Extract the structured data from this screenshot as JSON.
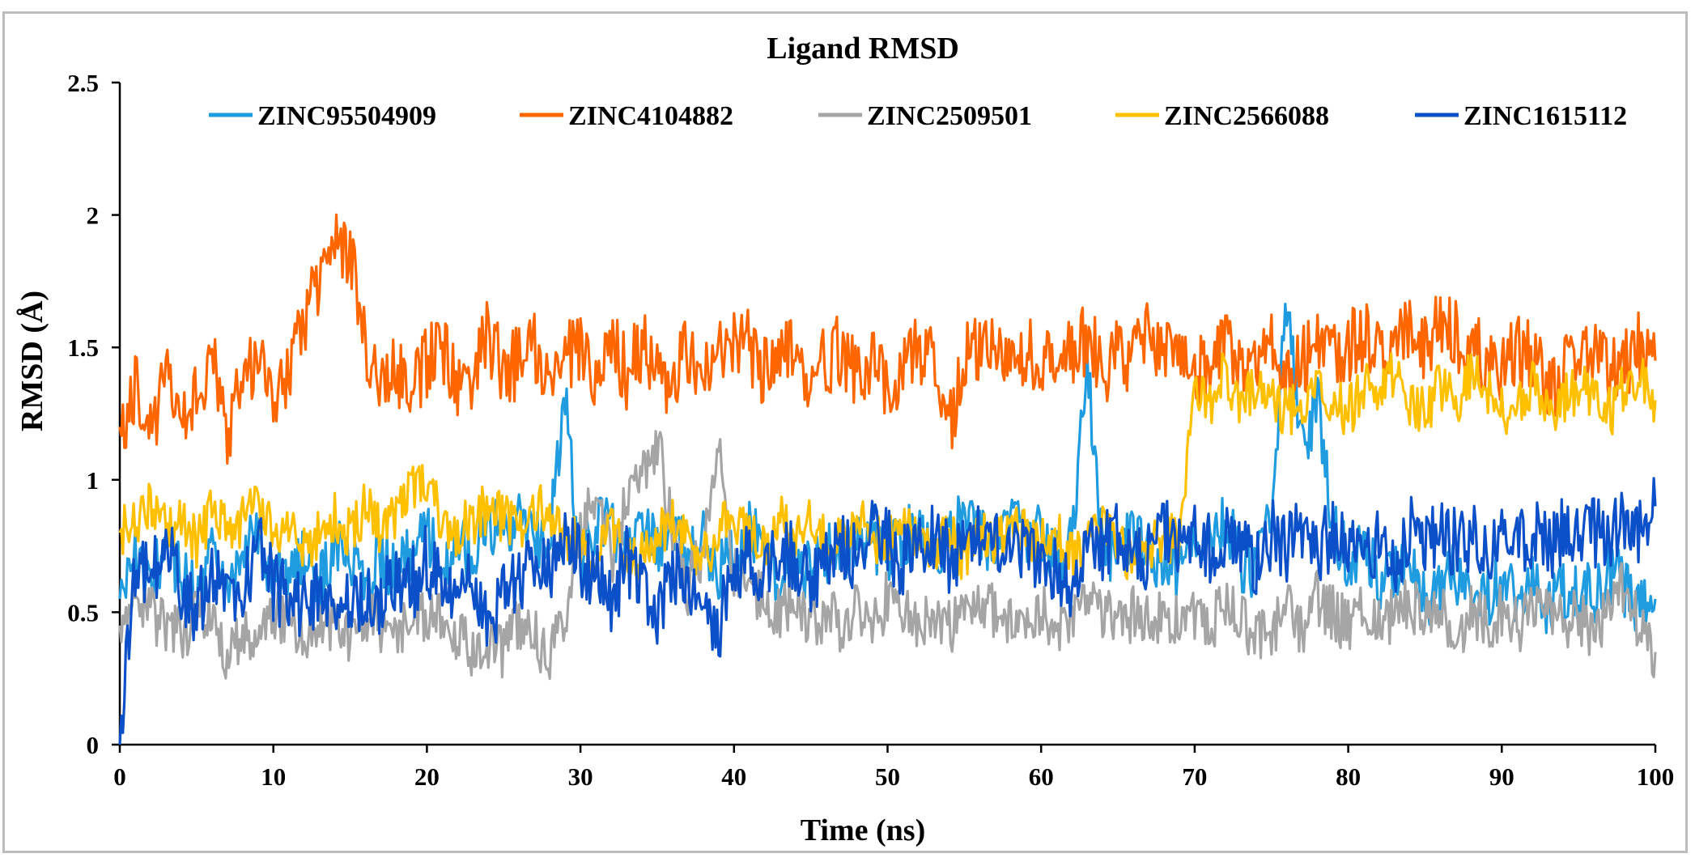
{
  "chart_data": {
    "type": "line",
    "title": "Ligand RMSD",
    "xlabel": "Time (ns)",
    "ylabel": "RMSD (Å)",
    "xlim": [
      0,
      100
    ],
    "ylim": [
      0,
      2.5
    ],
    "x_ticks": [
      0,
      10,
      20,
      30,
      40,
      50,
      60,
      70,
      80,
      90,
      100
    ],
    "y_ticks": [
      0,
      0.5,
      1,
      1.5,
      2,
      2.5
    ],
    "x_tick_labels": [
      "0",
      "10",
      "20",
      "30",
      "40",
      "50",
      "60",
      "70",
      "80",
      "90",
      "100"
    ],
    "y_tick_labels": [
      "0",
      "0.5",
      "1",
      "1.5",
      "2",
      "2.5"
    ],
    "grid": false,
    "legend_position": "top",
    "series": [
      {
        "name": "ZINC95504909",
        "color": "#1f9be0",
        "x": [
          0,
          1,
          2,
          3,
          4,
          5,
          6,
          7,
          8,
          9,
          10,
          11,
          12,
          13,
          14,
          15,
          16,
          17,
          18,
          19,
          20,
          21,
          22,
          23,
          24,
          25,
          26,
          27,
          28,
          29,
          30,
          31,
          32,
          33,
          34,
          35,
          36,
          37,
          38,
          39,
          40,
          41,
          42,
          43,
          44,
          45,
          46,
          47,
          48,
          49,
          50,
          51,
          52,
          53,
          54,
          55,
          56,
          57,
          58,
          59,
          60,
          61,
          62,
          63,
          64,
          65,
          66,
          67,
          68,
          69,
          70,
          71,
          72,
          73,
          74,
          75,
          76,
          77,
          78,
          79,
          80,
          81,
          82,
          83,
          84,
          85,
          86,
          87,
          88,
          89,
          90,
          91,
          92,
          93,
          94,
          95,
          96,
          97,
          98,
          99,
          100
        ],
        "values": [
          0.55,
          0.7,
          0.6,
          0.75,
          0.65,
          0.55,
          0.7,
          0.6,
          0.72,
          0.8,
          0.6,
          0.65,
          0.7,
          0.6,
          0.75,
          0.68,
          0.62,
          0.7,
          0.65,
          0.72,
          0.8,
          0.7,
          0.75,
          0.7,
          0.85,
          0.8,
          0.9,
          0.75,
          0.8,
          1.3,
          0.7,
          0.85,
          0.8,
          0.7,
          0.9,
          0.75,
          0.8,
          0.7,
          0.78,
          0.65,
          0.72,
          0.8,
          0.75,
          0.6,
          0.7,
          0.65,
          0.72,
          0.7,
          0.8,
          0.75,
          0.7,
          0.8,
          0.78,
          0.72,
          0.8,
          0.85,
          0.8,
          0.75,
          0.82,
          0.78,
          0.8,
          0.7,
          0.75,
          1.45,
          0.7,
          0.75,
          0.8,
          0.72,
          0.7,
          0.65,
          0.8,
          0.78,
          0.85,
          0.7,
          0.65,
          0.9,
          1.7,
          1.1,
          1.3,
          0.8,
          0.7,
          0.75,
          0.6,
          0.65,
          0.7,
          0.55,
          0.6,
          0.65,
          0.6,
          0.55,
          0.62,
          0.55,
          0.6,
          0.5,
          0.58,
          0.6,
          0.55,
          0.65,
          0.6,
          0.5,
          0.55
        ]
      },
      {
        "name": "ZINC4104882",
        "color": "#ff6600",
        "x": [
          0,
          1,
          2,
          3,
          4,
          5,
          6,
          7,
          8,
          9,
          10,
          11,
          12,
          13,
          14,
          15,
          16,
          17,
          18,
          19,
          20,
          21,
          22,
          23,
          24,
          25,
          26,
          27,
          28,
          29,
          30,
          31,
          32,
          33,
          34,
          35,
          36,
          37,
          38,
          39,
          40,
          41,
          42,
          43,
          44,
          45,
          46,
          47,
          48,
          49,
          50,
          51,
          52,
          53,
          54,
          55,
          56,
          57,
          58,
          59,
          60,
          61,
          62,
          63,
          64,
          65,
          66,
          67,
          68,
          69,
          70,
          71,
          72,
          73,
          74,
          75,
          76,
          77,
          78,
          79,
          80,
          81,
          82,
          83,
          84,
          85,
          86,
          87,
          88,
          89,
          90,
          91,
          92,
          93,
          94,
          95,
          96,
          97,
          98,
          99,
          100
        ],
        "values": [
          1.2,
          1.35,
          1.15,
          1.4,
          1.25,
          1.3,
          1.45,
          1.2,
          1.35,
          1.5,
          1.3,
          1.4,
          1.6,
          1.75,
          1.95,
          1.85,
          1.5,
          1.35,
          1.4,
          1.3,
          1.45,
          1.5,
          1.35,
          1.4,
          1.55,
          1.4,
          1.45,
          1.5,
          1.35,
          1.45,
          1.5,
          1.4,
          1.55,
          1.4,
          1.5,
          1.45,
          1.35,
          1.5,
          1.4,
          1.45,
          1.55,
          1.5,
          1.4,
          1.45,
          1.5,
          1.35,
          1.45,
          1.5,
          1.4,
          1.45,
          1.35,
          1.4,
          1.5,
          1.45,
          1.2,
          1.45,
          1.5,
          1.55,
          1.45,
          1.5,
          1.4,
          1.5,
          1.45,
          1.55,
          1.4,
          1.5,
          1.45,
          1.55,
          1.5,
          1.45,
          1.4,
          1.45,
          1.5,
          1.4,
          1.45,
          1.5,
          1.4,
          1.45,
          1.5,
          1.45,
          1.5,
          1.55,
          1.45,
          1.5,
          1.55,
          1.5,
          1.6,
          1.55,
          1.5,
          1.45,
          1.4,
          1.5,
          1.45,
          1.35,
          1.4,
          1.5,
          1.45,
          1.4,
          1.45,
          1.5,
          1.45
        ]
      },
      {
        "name": "ZINC2509501",
        "color": "#a5a5a5",
        "x": [
          0,
          1,
          2,
          3,
          4,
          5,
          6,
          7,
          8,
          9,
          10,
          11,
          12,
          13,
          14,
          15,
          16,
          17,
          18,
          19,
          20,
          21,
          22,
          23,
          24,
          25,
          26,
          27,
          28,
          29,
          30,
          31,
          32,
          33,
          34,
          35,
          36,
          37,
          38,
          39,
          40,
          41,
          42,
          43,
          44,
          45,
          46,
          47,
          48,
          49,
          50,
          51,
          52,
          53,
          54,
          55,
          56,
          57,
          58,
          59,
          60,
          61,
          62,
          63,
          64,
          65,
          66,
          67,
          68,
          69,
          70,
          71,
          72,
          73,
          74,
          75,
          76,
          77,
          78,
          79,
          80,
          81,
          82,
          83,
          84,
          85,
          86,
          87,
          88,
          89,
          90,
          91,
          92,
          93,
          94,
          95,
          96,
          97,
          98,
          99,
          100
        ],
        "values": [
          0.45,
          0.55,
          0.5,
          0.45,
          0.4,
          0.5,
          0.45,
          0.35,
          0.4,
          0.45,
          0.5,
          0.45,
          0.4,
          0.5,
          0.45,
          0.4,
          0.5,
          0.45,
          0.4,
          0.45,
          0.5,
          0.45,
          0.4,
          0.35,
          0.4,
          0.35,
          0.45,
          0.4,
          0.35,
          0.45,
          0.8,
          0.95,
          0.7,
          0.9,
          1.05,
          1.15,
          0.8,
          0.6,
          0.75,
          1.1,
          0.65,
          0.6,
          0.55,
          0.5,
          0.55,
          0.45,
          0.5,
          0.45,
          0.5,
          0.45,
          0.55,
          0.5,
          0.45,
          0.5,
          0.45,
          0.5,
          0.55,
          0.5,
          0.45,
          0.5,
          0.5,
          0.45,
          0.5,
          0.55,
          0.5,
          0.45,
          0.5,
          0.45,
          0.5,
          0.45,
          0.5,
          0.45,
          0.55,
          0.5,
          0.4,
          0.45,
          0.5,
          0.45,
          0.55,
          0.5,
          0.45,
          0.5,
          0.45,
          0.5,
          0.55,
          0.45,
          0.5,
          0.4,
          0.5,
          0.45,
          0.5,
          0.45,
          0.5,
          0.55,
          0.45,
          0.5,
          0.4,
          0.5,
          0.6,
          0.45,
          0.35
        ]
      },
      {
        "name": "ZINC2566088",
        "color": "#ffc000",
        "x": [
          0,
          1,
          2,
          3,
          4,
          5,
          6,
          7,
          8,
          9,
          10,
          11,
          12,
          13,
          14,
          15,
          16,
          17,
          18,
          19,
          20,
          21,
          22,
          23,
          24,
          25,
          26,
          27,
          28,
          29,
          30,
          31,
          32,
          33,
          34,
          35,
          36,
          37,
          38,
          39,
          40,
          41,
          42,
          43,
          44,
          45,
          46,
          47,
          48,
          49,
          50,
          51,
          52,
          53,
          54,
          55,
          56,
          57,
          58,
          59,
          60,
          61,
          62,
          63,
          64,
          65,
          66,
          67,
          68,
          69,
          70,
          71,
          72,
          73,
          74,
          75,
          76,
          77,
          78,
          79,
          80,
          81,
          82,
          83,
          84,
          85,
          86,
          87,
          88,
          89,
          90,
          91,
          92,
          93,
          94,
          95,
          96,
          97,
          98,
          99,
          100
        ],
        "values": [
          0.8,
          0.85,
          0.9,
          0.8,
          0.85,
          0.75,
          0.9,
          0.8,
          0.85,
          0.9,
          0.8,
          0.85,
          0.75,
          0.8,
          0.85,
          0.8,
          0.9,
          0.8,
          0.85,
          0.95,
          1.0,
          0.85,
          0.8,
          0.85,
          0.9,
          0.85,
          0.8,
          0.9,
          0.85,
          0.8,
          0.75,
          0.7,
          0.8,
          0.75,
          0.7,
          0.8,
          0.85,
          0.75,
          0.7,
          0.8,
          0.85,
          0.8,
          0.75,
          0.85,
          0.8,
          0.85,
          0.75,
          0.8,
          0.85,
          0.8,
          0.75,
          0.85,
          0.8,
          0.75,
          0.8,
          0.7,
          0.8,
          0.75,
          0.85,
          0.8,
          0.75,
          0.8,
          0.7,
          0.75,
          0.8,
          0.75,
          0.7,
          0.75,
          0.8,
          0.75,
          1.35,
          1.3,
          1.4,
          1.3,
          1.35,
          1.3,
          1.25,
          1.3,
          1.35,
          1.3,
          1.25,
          1.35,
          1.3,
          1.4,
          1.3,
          1.25,
          1.35,
          1.3,
          1.4,
          1.35,
          1.25,
          1.3,
          1.35,
          1.25,
          1.3,
          1.35,
          1.3,
          1.25,
          1.35,
          1.4,
          1.3
        ]
      },
      {
        "name": "ZINC1615112",
        "color": "#0b50c8",
        "x": [
          0,
          1,
          2,
          3,
          4,
          5,
          6,
          7,
          8,
          9,
          10,
          11,
          12,
          13,
          14,
          15,
          16,
          17,
          18,
          19,
          20,
          21,
          22,
          23,
          24,
          25,
          26,
          27,
          28,
          29,
          30,
          31,
          32,
          33,
          34,
          35,
          36,
          37,
          38,
          39,
          40,
          41,
          42,
          43,
          44,
          45,
          46,
          47,
          48,
          49,
          50,
          51,
          52,
          53,
          54,
          55,
          56,
          57,
          58,
          59,
          60,
          61,
          62,
          63,
          64,
          65,
          66,
          67,
          68,
          69,
          70,
          71,
          72,
          73,
          74,
          75,
          76,
          77,
          78,
          79,
          80,
          81,
          82,
          83,
          84,
          85,
          86,
          87,
          88,
          89,
          90,
          91,
          92,
          93,
          94,
          95,
          96,
          97,
          98,
          99,
          100
        ],
        "values": [
          0.0,
          0.7,
          0.6,
          0.8,
          0.55,
          0.5,
          0.65,
          0.6,
          0.55,
          0.8,
          0.6,
          0.55,
          0.5,
          0.6,
          0.55,
          0.5,
          0.6,
          0.55,
          0.65,
          0.6,
          0.7,
          0.6,
          0.55,
          0.6,
          0.5,
          0.55,
          0.6,
          0.7,
          0.65,
          0.75,
          0.7,
          0.65,
          0.55,
          0.7,
          0.6,
          0.5,
          0.65,
          0.55,
          0.5,
          0.45,
          0.65,
          0.7,
          0.65,
          0.75,
          0.7,
          0.6,
          0.7,
          0.75,
          0.7,
          0.8,
          0.75,
          0.7,
          0.75,
          0.8,
          0.7,
          0.75,
          0.8,
          0.75,
          0.8,
          0.75,
          0.7,
          0.65,
          0.6,
          0.7,
          0.75,
          0.8,
          0.75,
          0.7,
          0.8,
          0.75,
          0.8,
          0.75,
          0.8,
          0.75,
          0.7,
          0.8,
          0.75,
          0.8,
          0.75,
          0.8,
          0.75,
          0.8,
          0.75,
          0.7,
          0.8,
          0.75,
          0.8,
          0.75,
          0.8,
          0.75,
          0.8,
          0.75,
          0.8,
          0.75,
          0.8,
          0.75,
          0.8,
          0.75,
          0.85,
          0.8,
          0.9
        ]
      }
    ]
  }
}
